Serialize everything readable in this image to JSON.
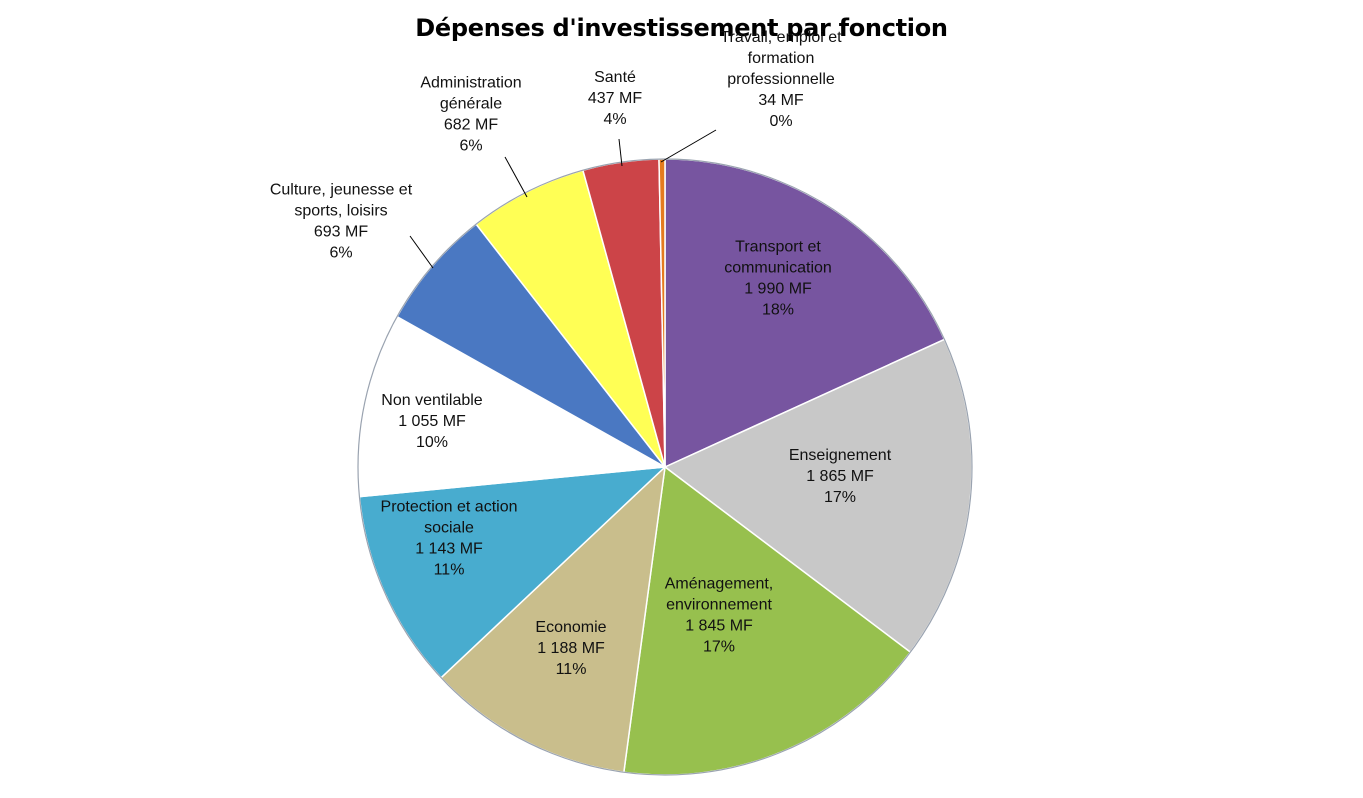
{
  "chart_data": {
    "type": "pie",
    "title": "Dépenses d'investissement par fonction",
    "unit": "MF",
    "slices": [
      {
        "name_lines": [
          "Transport et",
          "communication"
        ],
        "value": 1990,
        "value_label": "1 990 MF",
        "percent_label": "18%",
        "color": "#7755A0"
      },
      {
        "name_lines": [
          "Enseignement"
        ],
        "value": 1865,
        "value_label": "1 865 MF",
        "percent_label": "17%",
        "color": "#C8C8C8"
      },
      {
        "name_lines": [
          "Aménagement,",
          "environnement"
        ],
        "value": 1845,
        "value_label": "1 845 MF",
        "percent_label": "17%",
        "color": "#97C04E"
      },
      {
        "name_lines": [
          "Economie"
        ],
        "value": 1188,
        "value_label": "1 188 MF",
        "percent_label": "11%",
        "color": "#C9BE8C"
      },
      {
        "name_lines": [
          "Protection et action",
          "sociale"
        ],
        "value": 1143,
        "value_label": "1 143 MF",
        "percent_label": "11%",
        "color": "#48ACCF"
      },
      {
        "name_lines": [
          "Non ventilable"
        ],
        "value": 1055,
        "value_label": "1 055 MF",
        "percent_label": "10%",
        "color": "#FFFFFF"
      },
      {
        "name_lines": [
          "Culture, jeunesse et",
          "sports, loisirs"
        ],
        "value": 693,
        "value_label": "693 MF",
        "percent_label": "6%",
        "color": "#4A78C2"
      },
      {
        "name_lines": [
          "Administration",
          "générale"
        ],
        "value": 682,
        "value_label": "682 MF",
        "percent_label": "6%",
        "color": "#FFFF55"
      },
      {
        "name_lines": [
          "Santé"
        ],
        "value": 437,
        "value_label": "437 MF",
        "percent_label": "4%",
        "color": "#CC4448"
      },
      {
        "name_lines": [
          "Travail, emploi et",
          "formation",
          "professionnelle"
        ],
        "value": 34,
        "value_label": "34 MF",
        "percent_label": "0%",
        "color": "#E47B1E"
      }
    ]
  }
}
